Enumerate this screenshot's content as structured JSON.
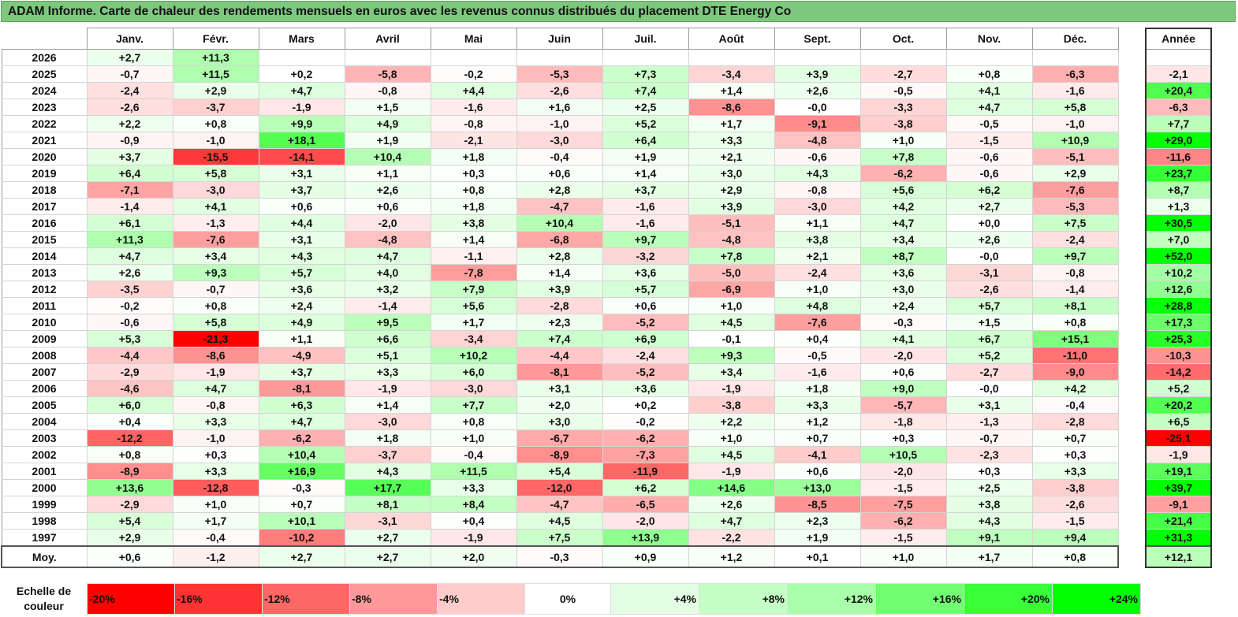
{
  "title": "ADAM Informe. Carte de chaleur des rendements mensuels en euros avec les revenus connus distribués du placement DTE Energy Co",
  "chart_data": {
    "type": "heatmap",
    "months": [
      "Janv.",
      "Févr.",
      "Mars",
      "Avril",
      "Mai",
      "Juin",
      "Juil.",
      "Août",
      "Sept.",
      "Oct.",
      "Nov.",
      "Déc."
    ],
    "annual_header": "Année",
    "average_label": "Moy.",
    "rows": [
      {
        "year": "2026",
        "values": [
          "+2,7",
          "+11,3",
          "",
          "",
          "",
          "",
          "",
          "",
          "",
          "",
          "",
          ""
        ],
        "annual": ""
      },
      {
        "year": "2025",
        "values": [
          "-0,7",
          "+11,5",
          "+0,2",
          "-5,8",
          "-0,2",
          "-5,3",
          "+7,3",
          "-3,4",
          "+3,9",
          "-2,7",
          "+0,8",
          "-6,3"
        ],
        "annual": "-2,1"
      },
      {
        "year": "2024",
        "values": [
          "-2,4",
          "+2,9",
          "+4,7",
          "-0,8",
          "+4,4",
          "-2,6",
          "+7,4",
          "+1,4",
          "+2,6",
          "-0,5",
          "+4,1",
          "-1,6"
        ],
        "annual": "+20,4"
      },
      {
        "year": "2023",
        "values": [
          "-2,6",
          "-3,7",
          "-1,9",
          "+1,5",
          "-1,6",
          "+1,6",
          "+2,5",
          "-8,6",
          "-0,0",
          "-3,3",
          "+4,7",
          "+5,8"
        ],
        "annual": "-6,3"
      },
      {
        "year": "2022",
        "values": [
          "+2,2",
          "+0,8",
          "+9,9",
          "+4,9",
          "-0,8",
          "-1,0",
          "+5,2",
          "+1,7",
          "-9,1",
          "-3,8",
          "-0,5",
          "-1,0"
        ],
        "annual": "+7,7"
      },
      {
        "year": "2021",
        "values": [
          "-0,9",
          "-1,0",
          "+18,1",
          "+1,9",
          "-2,1",
          "-3,0",
          "+6,4",
          "+3,3",
          "-4,8",
          "+1,0",
          "-1,5",
          "+10,9"
        ],
        "annual": "+29,0"
      },
      {
        "year": "2020",
        "values": [
          "+3,7",
          "-15,5",
          "-14,1",
          "+10,4",
          "+1,8",
          "-0,4",
          "+1,9",
          "+2,1",
          "-0,6",
          "+7,8",
          "-0,6",
          "-5,1"
        ],
        "annual": "-11,6"
      },
      {
        "year": "2019",
        "values": [
          "+6,4",
          "+5,8",
          "+3,1",
          "+1,1",
          "+0,3",
          "+0,6",
          "+1,4",
          "+3,0",
          "+4,3",
          "-6,2",
          "-0,6",
          "+2,9"
        ],
        "annual": "+23,7"
      },
      {
        "year": "2018",
        "values": [
          "-7,1",
          "-3,0",
          "+3,7",
          "+2,6",
          "+0,8",
          "+2,8",
          "+3,7",
          "+2,9",
          "-0,8",
          "+5,6",
          "+6,2",
          "-7,6"
        ],
        "annual": "+8,7"
      },
      {
        "year": "2017",
        "values": [
          "-1,4",
          "+4,1",
          "+0,6",
          "+0,6",
          "+1,8",
          "-4,7",
          "-1,6",
          "+3,9",
          "-3,0",
          "+4,2",
          "+2,7",
          "-5,3"
        ],
        "annual": "+1,3"
      },
      {
        "year": "2016",
        "values": [
          "+6,1",
          "-1,3",
          "+4,4",
          "-2,0",
          "+3,8",
          "+10,4",
          "-1,6",
          "-5,1",
          "+1,1",
          "+4,7",
          "+0,0",
          "+7,5"
        ],
        "annual": "+30,5"
      },
      {
        "year": "2015",
        "values": [
          "+11,3",
          "-7,6",
          "+3,1",
          "-4,8",
          "+1,4",
          "-6,8",
          "+9,7",
          "-4,8",
          "+3,8",
          "+3,4",
          "+2,6",
          "-2,4"
        ],
        "annual": "+7,0"
      },
      {
        "year": "2014",
        "values": [
          "+4,7",
          "+3,4",
          "+4,3",
          "+4,7",
          "-1,1",
          "+2,8",
          "-3,2",
          "+7,8",
          "+2,1",
          "+8,7",
          "-0,0",
          "+9,7"
        ],
        "annual": "+52,0"
      },
      {
        "year": "2013",
        "values": [
          "+2,6",
          "+9,3",
          "+5,7",
          "+4,0",
          "-7,8",
          "+1,4",
          "+3,6",
          "-5,0",
          "-2,4",
          "+3,6",
          "-3,1",
          "-0,8"
        ],
        "annual": "+10,2"
      },
      {
        "year": "2012",
        "values": [
          "-3,5",
          "-0,7",
          "+3,6",
          "+3,2",
          "+7,9",
          "+3,9",
          "+5,7",
          "-6,9",
          "+1,0",
          "+3,0",
          "-2,6",
          "-1,4"
        ],
        "annual": "+12,6"
      },
      {
        "year": "2011",
        "values": [
          "-0,2",
          "+0,8",
          "+2,4",
          "-1,4",
          "+5,6",
          "-2,8",
          "+0,6",
          "+1,0",
          "+4,8",
          "+2,4",
          "+5,7",
          "+8,1"
        ],
        "annual": "+28,8"
      },
      {
        "year": "2010",
        "values": [
          "-0,6",
          "+5,8",
          "+4,9",
          "+9,5",
          "+1,7",
          "+2,3",
          "-5,2",
          "+4,5",
          "-7,6",
          "-0,3",
          "+1,5",
          "+0,8"
        ],
        "annual": "+17,3"
      },
      {
        "year": "2009",
        "values": [
          "+5,3",
          "-21,3",
          "+1,1",
          "+6,6",
          "-3,4",
          "+7,4",
          "+6,9",
          "-0,1",
          "+0,4",
          "+4,1",
          "+6,7",
          "+15,1"
        ],
        "annual": "+25,3"
      },
      {
        "year": "2008",
        "values": [
          "-4,4",
          "-8,6",
          "-4,9",
          "+5,1",
          "+10,2",
          "-4,4",
          "-2,4",
          "+9,3",
          "-0,5",
          "-2,0",
          "+5,2",
          "-11,0"
        ],
        "annual": "-10,3"
      },
      {
        "year": "2007",
        "values": [
          "-2,9",
          "-1,9",
          "+3,7",
          "+3,3",
          "+6,0",
          "-8,1",
          "-5,2",
          "+3,4",
          "-1,6",
          "+0,6",
          "-2,7",
          "-9,0"
        ],
        "annual": "-14,2"
      },
      {
        "year": "2006",
        "values": [
          "-4,6",
          "+4,7",
          "-8,1",
          "-1,9",
          "-3,0",
          "+3,1",
          "+3,6",
          "-1,9",
          "+1,8",
          "+9,0",
          "-0,0",
          "+4,2"
        ],
        "annual": "+5,2"
      },
      {
        "year": "2005",
        "values": [
          "+6,0",
          "-0,8",
          "+6,3",
          "+1,4",
          "+7,7",
          "+2,0",
          "+0,2",
          "-3,8",
          "+3,3",
          "-5,7",
          "+3,1",
          "-0,4"
        ],
        "annual": "+20,2"
      },
      {
        "year": "2004",
        "values": [
          "+0,4",
          "+3,3",
          "+4,7",
          "-3,0",
          "+0,8",
          "+3,0",
          "-0,2",
          "+2,2",
          "+1,2",
          "-1,8",
          "-1,3",
          "-2,8"
        ],
        "annual": "+6,5"
      },
      {
        "year": "2003",
        "values": [
          "-12,2",
          "-1,0",
          "-6,2",
          "+1,8",
          "+1,0",
          "-6,7",
          "-6,2",
          "+1,0",
          "+0,7",
          "+0,3",
          "-0,7",
          "+0,7"
        ],
        "annual": "-25,1"
      },
      {
        "year": "2002",
        "values": [
          "+0,8",
          "+0,3",
          "+10,4",
          "-3,7",
          "-0,4",
          "-8,9",
          "-7,3",
          "+4,5",
          "-4,1",
          "+10,5",
          "-2,3",
          "+0,3"
        ],
        "annual": "-1,9"
      },
      {
        "year": "2001",
        "values": [
          "-8,9",
          "+3,3",
          "+16,9",
          "+4,3",
          "+11,5",
          "+5,4",
          "-11,9",
          "-1,9",
          "+0,6",
          "-2,0",
          "+0,3",
          "+3,3"
        ],
        "annual": "+19,1"
      },
      {
        "year": "2000",
        "values": [
          "+13,6",
          "-12,8",
          "-0,3",
          "+17,7",
          "+3,3",
          "-12,0",
          "+6,2",
          "+14,6",
          "+13,0",
          "-1,5",
          "+2,5",
          "-3,8"
        ],
        "annual": "+39,7"
      },
      {
        "year": "1999",
        "values": [
          "-2,9",
          "+1,0",
          "+0,7",
          "+8,1",
          "+8,4",
          "-4,7",
          "-6,5",
          "+2,6",
          "-8,5",
          "-7,5",
          "+3,8",
          "-2,6"
        ],
        "annual": "-9,1"
      },
      {
        "year": "1998",
        "values": [
          "+5,4",
          "+1,7",
          "+10,1",
          "-3,1",
          "+0,4",
          "+4,5",
          "-2,0",
          "+4,7",
          "+2,3",
          "-6,2",
          "+4,3",
          "-1,5"
        ],
        "annual": "+21,4"
      },
      {
        "year": "1997",
        "values": [
          "+2,9",
          "-0,4",
          "-10,2",
          "+2,7",
          "-1,9",
          "+7,5",
          "+13,9",
          "-2,2",
          "+1,9",
          "-1,5",
          "+9,1",
          "+9,4"
        ],
        "annual": "+31,3"
      }
    ],
    "averages": [
      "+0,6",
      "-1,2",
      "+2,7",
      "+2,7",
      "+2,0",
      "-0,3",
      "+0,9",
      "+1,2",
      "+0,1",
      "+1,0",
      "+1,7",
      "+0,8"
    ],
    "annual_average": "+12,1",
    "scale_label": "Echelle de couleur",
    "scale": [
      {
        "label": "-20%",
        "value": -20
      },
      {
        "label": "-16%",
        "value": -16
      },
      {
        "label": "-12%",
        "value": -12
      },
      {
        "label": "-8%",
        "value": -8
      },
      {
        "label": "-4%",
        "value": -4
      },
      {
        "label": "0%",
        "value": 0
      },
      {
        "label": "+4%",
        "value": 4
      },
      {
        "label": "+8%",
        "value": 8
      },
      {
        "label": "+12%",
        "value": 12
      },
      {
        "label": "+16%",
        "value": 16
      },
      {
        "label": "+20%",
        "value": 20
      },
      {
        "label": "+24%",
        "value": 24
      }
    ]
  }
}
